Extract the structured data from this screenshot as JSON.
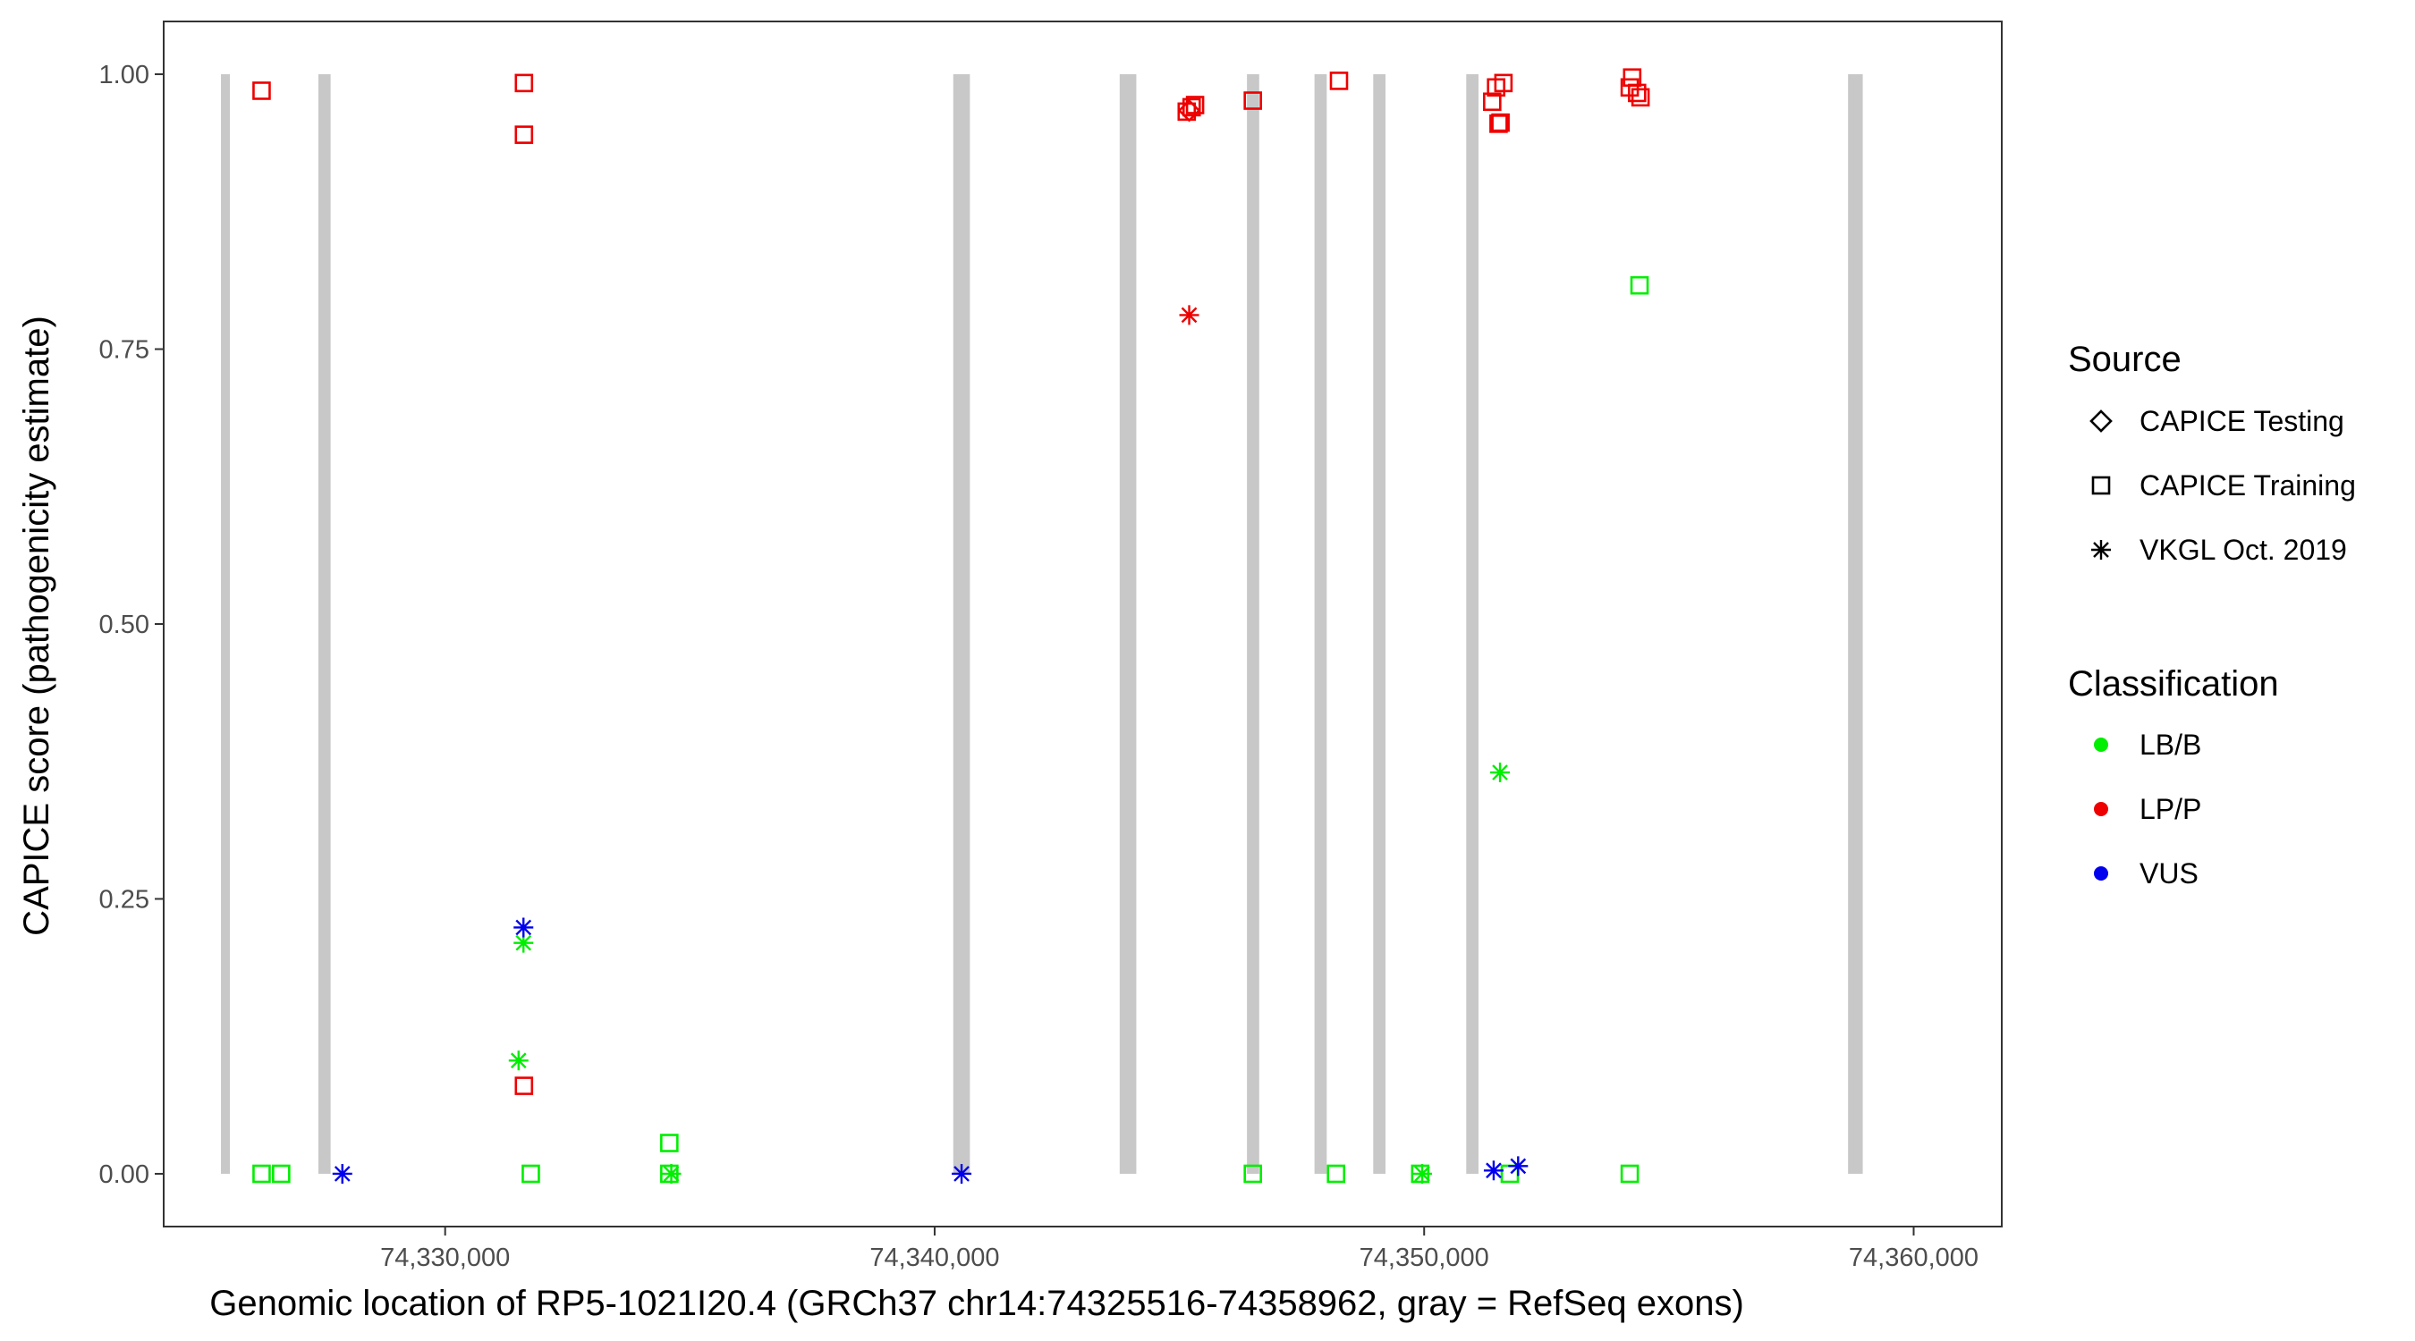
{
  "chart_data": {
    "type": "scatter",
    "xlabel": "Genomic location of RP5-1021I20.4 (GRCh37 chr14:74325516-74358962, gray = RefSeq exons)",
    "ylabel": "CAPICE score (pathogenicity estimate)",
    "xlim": [
      74324250,
      74361800
    ],
    "ylim": [
      -0.048,
      1.048
    ],
    "x_ticks": [
      74330000,
      74340000,
      74350000,
      74360000
    ],
    "x_tick_labels": [
      "74,330,000",
      "74,340,000",
      "74,350,000",
      "74,360,000"
    ],
    "y_ticks": [
      0,
      0.25,
      0.5,
      0.75,
      1
    ],
    "y_tick_labels": [
      "0.00",
      "0.25",
      "0.50",
      "0.75",
      "1.00"
    ],
    "grid": false,
    "exon_color": "#c8c8c8",
    "exons": [
      {
        "start": 74325420,
        "end": 74325580
      },
      {
        "start": 74327410,
        "end": 74327660
      },
      {
        "start": 74340380,
        "end": 74340720
      },
      {
        "start": 74343780,
        "end": 74344120
      },
      {
        "start": 74346380,
        "end": 74346630
      },
      {
        "start": 74347760,
        "end": 74348010
      },
      {
        "start": 74348960,
        "end": 74349210
      },
      {
        "start": 74350860,
        "end": 74351110
      },
      {
        "start": 74358660,
        "end": 74358960
      }
    ],
    "legend": {
      "position": "right",
      "source": {
        "title": "Source",
        "entries": [
          {
            "label": "CAPICE Testing",
            "shape": "diamond"
          },
          {
            "label": "CAPICE Training",
            "shape": "square"
          },
          {
            "label": "VKGL Oct. 2019",
            "shape": "asterisk"
          }
        ]
      },
      "classification": {
        "title": "Classification",
        "entries": [
          {
            "label": "LB/B",
            "color": "#00ee00"
          },
          {
            "label": "LP/P",
            "color": "#ee0000"
          },
          {
            "label": "VUS",
            "color": "#0000ee"
          }
        ]
      }
    },
    "points": [
      {
        "x": 74326250,
        "y": 0.985,
        "source": "CAPICE Training",
        "class": "LP/P"
      },
      {
        "x": 74331610,
        "y": 0.992,
        "source": "CAPICE Training",
        "class": "LP/P"
      },
      {
        "x": 74331610,
        "y": 0.945,
        "source": "CAPICE Training",
        "class": "LP/P"
      },
      {
        "x": 74331610,
        "y": 0.08,
        "source": "CAPICE Training",
        "class": "LP/P"
      },
      {
        "x": 74345200,
        "y": 0.967,
        "source": "CAPICE Testing",
        "class": "LP/P"
      },
      {
        "x": 74345250,
        "y": 0.97,
        "source": "CAPICE Training",
        "class": "LP/P"
      },
      {
        "x": 74345150,
        "y": 0.966,
        "source": "CAPICE Training",
        "class": "LP/P"
      },
      {
        "x": 74345320,
        "y": 0.972,
        "source": "CAPICE Training",
        "class": "LP/P"
      },
      {
        "x": 74346500,
        "y": 0.976,
        "source": "CAPICE Training",
        "class": "LP/P"
      },
      {
        "x": 74348260,
        "y": 0.994,
        "source": "CAPICE Training",
        "class": "LP/P"
      },
      {
        "x": 74351390,
        "y": 0.975,
        "source": "CAPICE Training",
        "class": "LP/P"
      },
      {
        "x": 74351470,
        "y": 0.988,
        "source": "CAPICE Training",
        "class": "LP/P"
      },
      {
        "x": 74351620,
        "y": 0.992,
        "source": "CAPICE Training",
        "class": "LP/P"
      },
      {
        "x": 74351520,
        "y": 0.955,
        "source": "CAPICE Training",
        "class": "LP/P"
      },
      {
        "x": 74351560,
        "y": 0.956,
        "source": "CAPICE Training",
        "class": "LP/P"
      },
      {
        "x": 74354250,
        "y": 0.997,
        "source": "CAPICE Training",
        "class": "LP/P"
      },
      {
        "x": 74354200,
        "y": 0.988,
        "source": "CAPICE Training",
        "class": "LP/P"
      },
      {
        "x": 74354350,
        "y": 0.983,
        "source": "CAPICE Training",
        "class": "LP/P"
      },
      {
        "x": 74354420,
        "y": 0.979,
        "source": "CAPICE Training",
        "class": "LP/P"
      },
      {
        "x": 74345200,
        "y": 0.781,
        "source": "VKGL Oct. 2019",
        "class": "LP/P"
      },
      {
        "x": 74354400,
        "y": 0.808,
        "source": "CAPICE Training",
        "class": "LB/B"
      },
      {
        "x": 74351550,
        "y": 0.365,
        "source": "VKGL Oct. 2019",
        "class": "LB/B"
      },
      {
        "x": 74331600,
        "y": 0.21,
        "source": "VKGL Oct. 2019",
        "class": "LB/B"
      },
      {
        "x": 74331500,
        "y": 0.103,
        "source": "VKGL Oct. 2019",
        "class": "LB/B"
      },
      {
        "x": 74334580,
        "y": 0.028,
        "source": "CAPICE Training",
        "class": "LB/B"
      },
      {
        "x": 74326250,
        "y": 0.0,
        "source": "CAPICE Training",
        "class": "LB/B"
      },
      {
        "x": 74326650,
        "y": 0.0,
        "source": "CAPICE Training",
        "class": "LB/B"
      },
      {
        "x": 74331750,
        "y": 0.0,
        "source": "CAPICE Training",
        "class": "LB/B"
      },
      {
        "x": 74334580,
        "y": 0.0,
        "source": "CAPICE Training",
        "class": "LB/B"
      },
      {
        "x": 74334620,
        "y": 0.0,
        "source": "VKGL Oct. 2019",
        "class": "LB/B"
      },
      {
        "x": 74346500,
        "y": 0.0,
        "source": "CAPICE Training",
        "class": "LB/B"
      },
      {
        "x": 74348200,
        "y": 0.0,
        "source": "CAPICE Training",
        "class": "LB/B"
      },
      {
        "x": 74349920,
        "y": 0.0,
        "source": "CAPICE Training",
        "class": "LB/B"
      },
      {
        "x": 74349960,
        "y": 0.0,
        "source": "VKGL Oct. 2019",
        "class": "LB/B"
      },
      {
        "x": 74351750,
        "y": 0.0,
        "source": "CAPICE Training",
        "class": "LB/B"
      },
      {
        "x": 74354200,
        "y": 0.0,
        "source": "CAPICE Training",
        "class": "LB/B"
      },
      {
        "x": 74331600,
        "y": 0.224,
        "source": "VKGL Oct. 2019",
        "class": "VUS"
      },
      {
        "x": 74327900,
        "y": 0.0,
        "source": "VKGL Oct. 2019",
        "class": "VUS"
      },
      {
        "x": 74340550,
        "y": 0.0,
        "source": "VKGL Oct. 2019",
        "class": "VUS"
      },
      {
        "x": 74351420,
        "y": 0.003,
        "source": "VKGL Oct. 2019",
        "class": "VUS"
      },
      {
        "x": 74351920,
        "y": 0.007,
        "source": "VKGL Oct. 2019",
        "class": "VUS"
      }
    ]
  }
}
